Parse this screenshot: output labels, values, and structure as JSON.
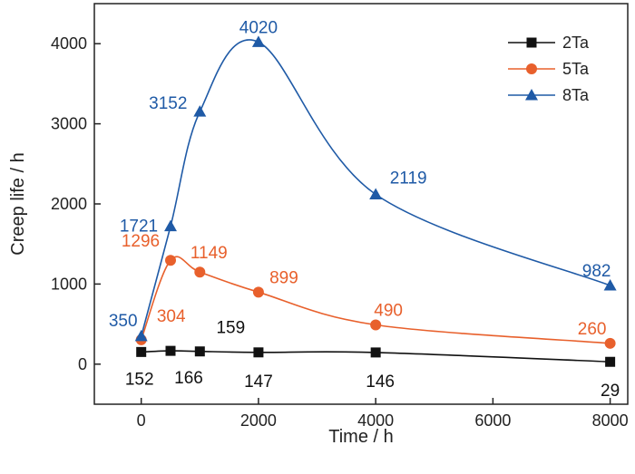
{
  "chart_data": {
    "type": "line",
    "xlabel": "Time / h",
    "ylabel": "Creep life / h",
    "xlim": [
      -800,
      8300
    ],
    "ylim": [
      -500,
      4500
    ],
    "xticks": [
      0,
      2000,
      4000,
      6000,
      8000
    ],
    "yticks": [
      0,
      1000,
      2000,
      3000,
      4000
    ],
    "x_tick_labels": [
      "0",
      "2000",
      "4000",
      "6000",
      "8000"
    ],
    "y_tick_labels": [
      "0",
      "1000",
      "2000",
      "3000",
      "4000"
    ],
    "grid": false,
    "legend_position": "top-right",
    "series": [
      {
        "name": "2Ta",
        "color": "#111111",
        "marker": "square",
        "x": [
          0,
          500,
          1000,
          2000,
          4000,
          8000
        ],
        "y": [
          152,
          166,
          159,
          147,
          146,
          29
        ],
        "labels": [
          "152",
          "166",
          "159",
          "147",
          "146",
          "29"
        ]
      },
      {
        "name": "5Ta",
        "color": "#E8602C",
        "marker": "circle",
        "x": [
          0,
          500,
          1000,
          2000,
          4000,
          8000
        ],
        "y": [
          304,
          1296,
          1149,
          899,
          490,
          260
        ],
        "labels": [
          "304",
          "1296",
          "1149",
          "899",
          "490",
          "260"
        ]
      },
      {
        "name": "8Ta",
        "color": "#1F5AA6",
        "marker": "triangle",
        "x": [
          0,
          500,
          1000,
          2000,
          4000,
          8000
        ],
        "y": [
          350,
          1721,
          3152,
          4020,
          2119,
          982
        ],
        "labels": [
          "350",
          "1721",
          "3152",
          "4020",
          "2119",
          "982"
        ]
      }
    ]
  }
}
